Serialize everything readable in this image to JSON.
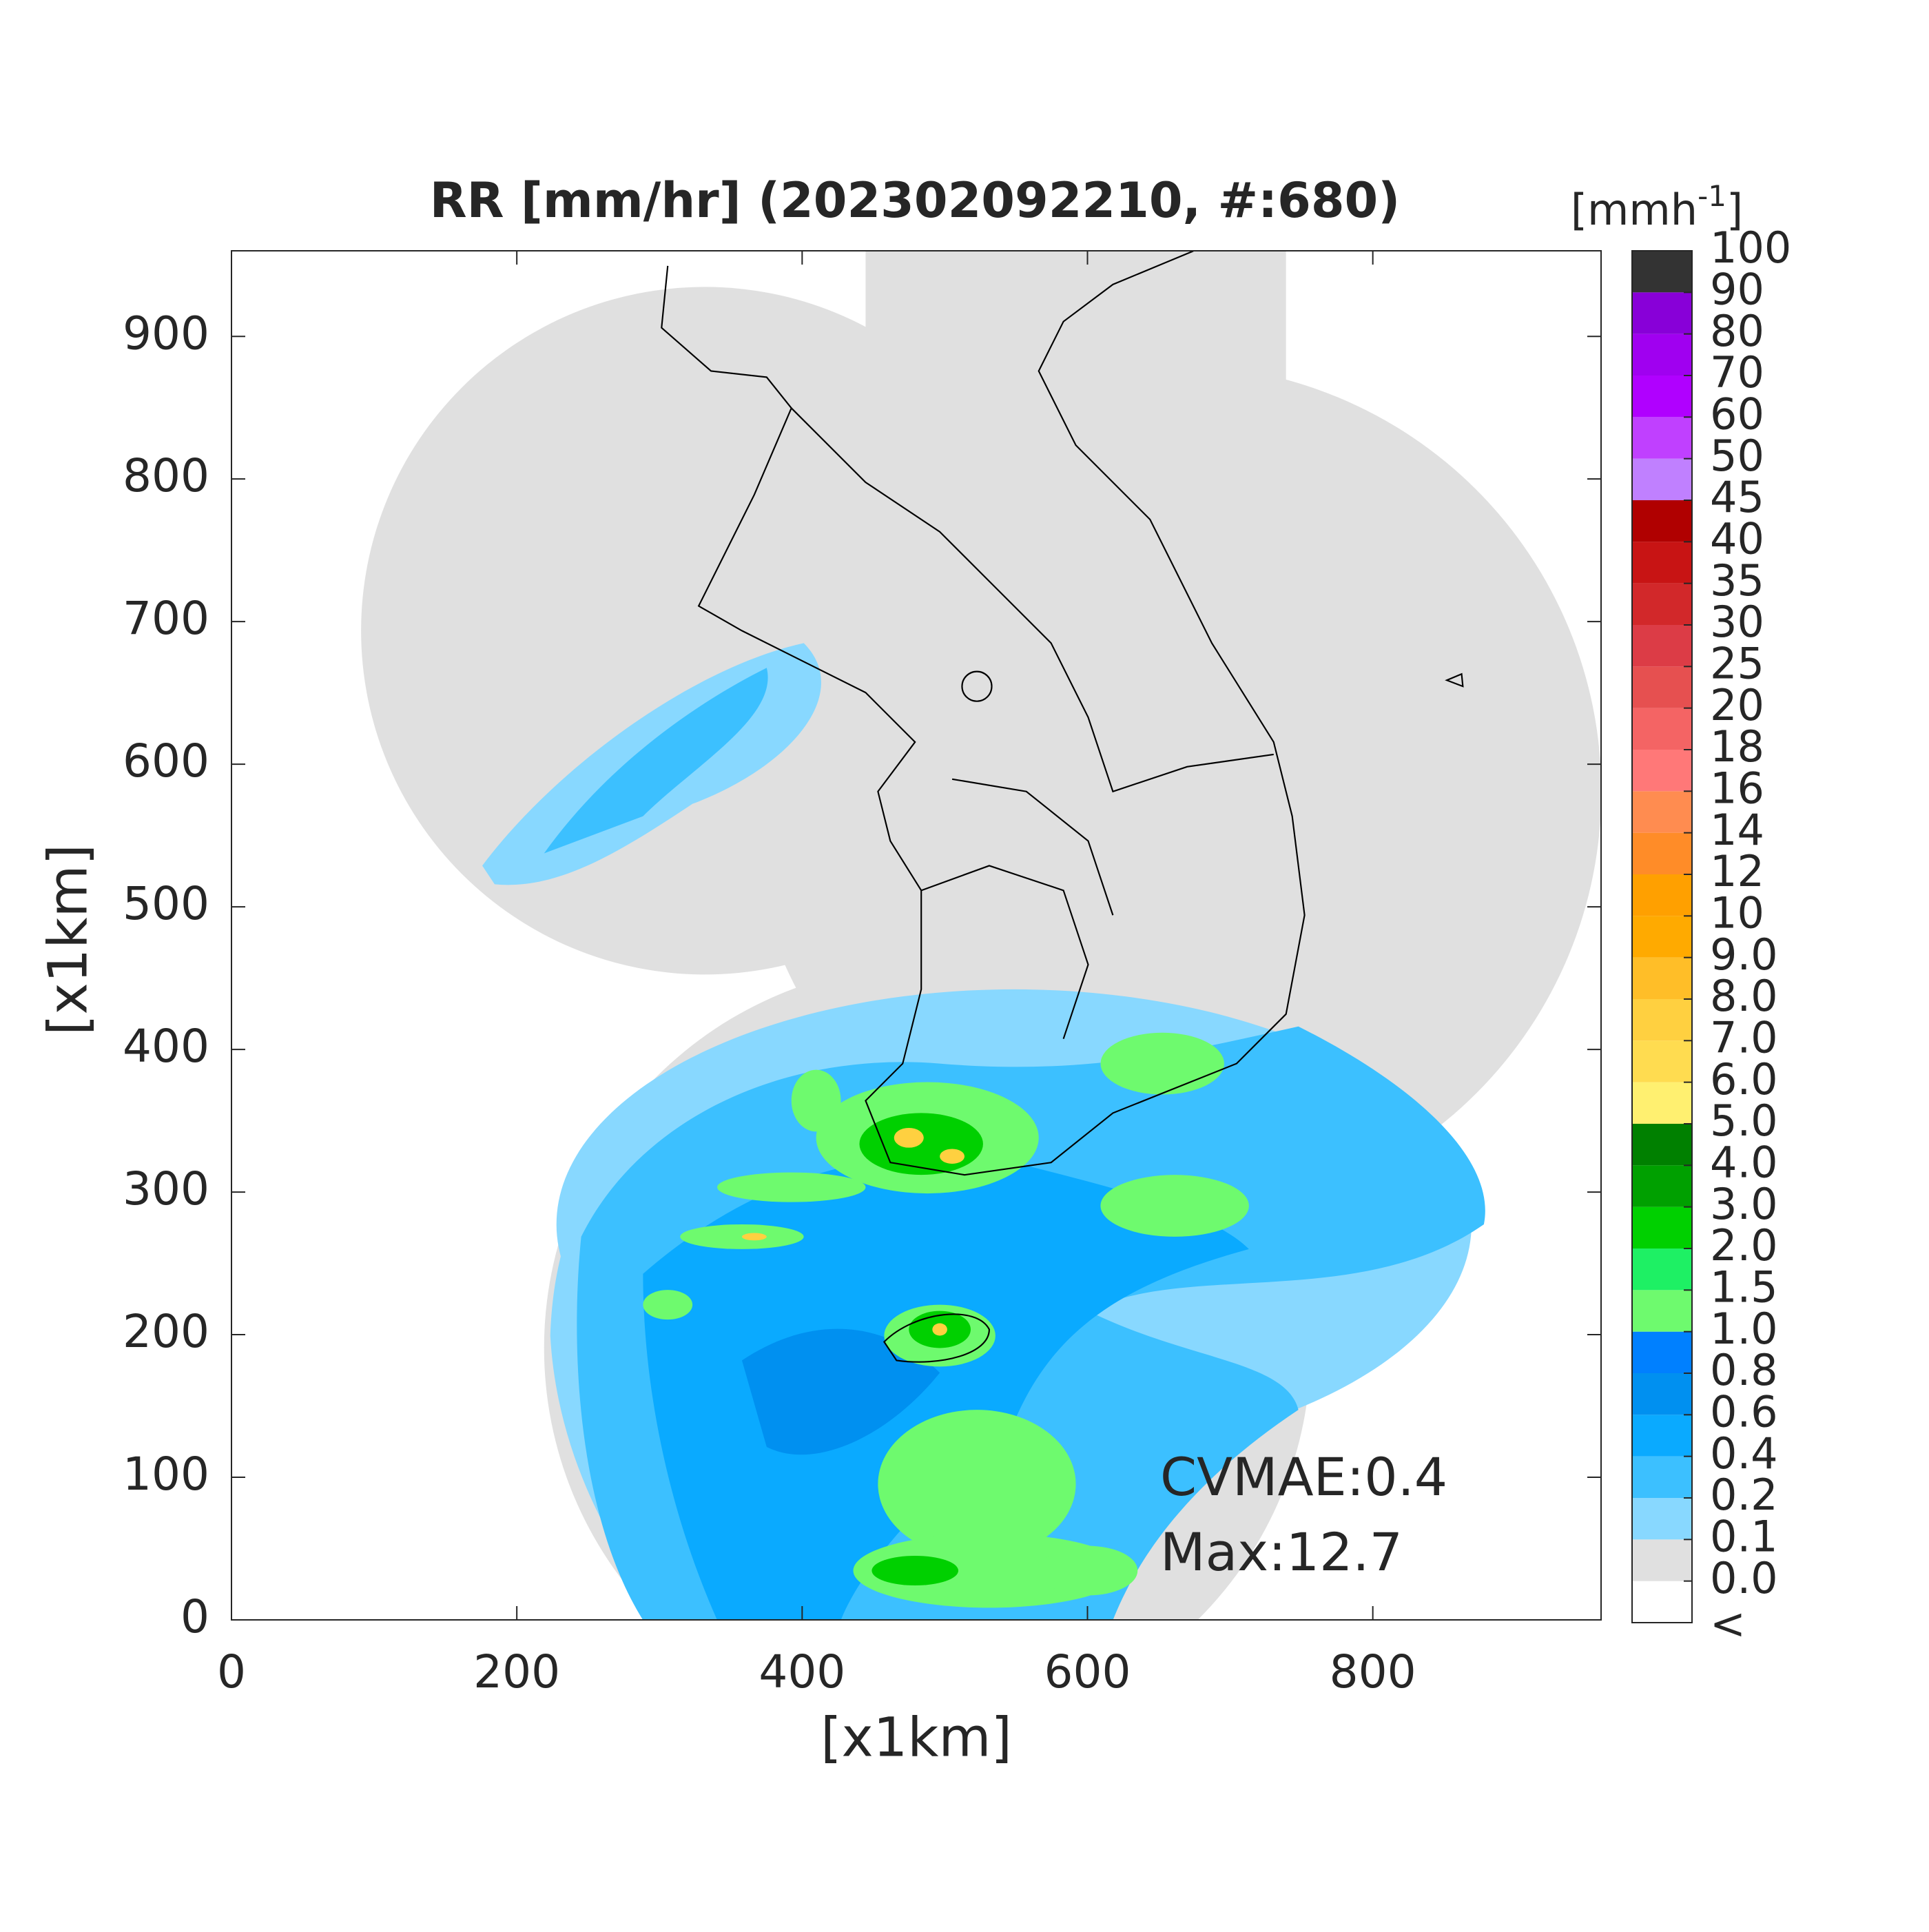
{
  "chart_data": {
    "type": "map",
    "title": "RR [mm/hr] (202302092210, #:680)",
    "x_label": "[x1km]",
    "y_label": "[x1km]",
    "xlim": [
      0,
      960
    ],
    "ylim": [
      0,
      960
    ],
    "xticks": [
      0,
      200,
      400,
      600,
      800
    ],
    "yticks": [
      0,
      100,
      200,
      300,
      400,
      500,
      600,
      700,
      800,
      900
    ],
    "annotations": [
      "CVMAE:0.4",
      "Max:12.7"
    ],
    "colorbar": {
      "unit": "[mmh",
      "unit_exponent": "-1",
      "unit_close": "]",
      "under_label": "<",
      "ticks": [
        {
          "value": 0,
          "label": "0.0"
        },
        0.1,
        0.2,
        0.4,
        0.6,
        0.8,
        {
          "value": 1,
          "label": "1.0"
        },
        1.5,
        {
          "value": 2,
          "label": "2.0"
        },
        {
          "value": 3,
          "label": "3.0"
        },
        {
          "value": 4,
          "label": "4.0"
        },
        {
          "value": 5,
          "label": "5.0"
        },
        {
          "value": 6,
          "label": "6.0"
        },
        {
          "value": 7,
          "label": "7.0"
        },
        {
          "value": 8,
          "label": "8.0"
        },
        {
          "value": 9,
          "label": "9.0"
        },
        10,
        12,
        14,
        16,
        18,
        20,
        25,
        30,
        35,
        40,
        45,
        50,
        60,
        70,
        80,
        90,
        100
      ],
      "colors": [
        "#ffffff",
        "#e0e0e0",
        "#88d8ff",
        "#3cc0ff",
        "#0aaaff",
        "#0090f0",
        "#0080ff",
        "#6efa6e",
        "#1ef064",
        "#00d000",
        "#00a000",
        "#008000",
        "#fff070",
        "#ffdc50",
        "#ffd040",
        "#ffbe28",
        "#ffaa00",
        "#ffa000",
        "#ff8c28",
        "#ff8c50",
        "#ff7878",
        "#f46464",
        "#e65050",
        "#dc3c46",
        "#d2282a",
        "#c81414",
        "#b00000",
        "#c080ff",
        "#c040ff",
        "#b000ff",
        "#a000f0",
        "#8800d8",
        "#333333"
      ]
    }
  }
}
